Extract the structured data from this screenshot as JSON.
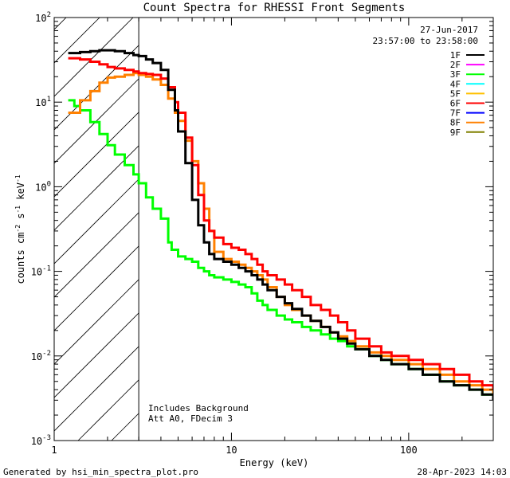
{
  "chart_data": {
    "type": "line",
    "title": "Count Spectra for RHESSI Front Segments",
    "xlabel": "Energy (keV)",
    "ylabel_base": "counts cm",
    "ylabel_exp1": "-2",
    "ylabel_mid1": " s",
    "ylabel_exp2": "-1",
    "ylabel_mid2": " keV",
    "ylabel_exp3": "-1",
    "xscale": "log",
    "yscale": "log",
    "xlim": [
      1,
      300
    ],
    "ylim": [
      0.001,
      100
    ],
    "x_ticks": [
      {
        "value": 1,
        "label": "1"
      },
      {
        "value": 10,
        "label": "10"
      },
      {
        "value": 100,
        "label": "100"
      }
    ],
    "y_ticks": [
      {
        "value": 100,
        "base": "10",
        "exp": "2"
      },
      {
        "value": 10,
        "base": "10",
        "exp": "1"
      },
      {
        "value": 1,
        "base": "10",
        "exp": "0"
      },
      {
        "value": 0.1,
        "base": "10",
        "exp": "-1"
      },
      {
        "value": 0.01,
        "base": "10",
        "exp": "-2"
      },
      {
        "value": 0.001,
        "base": "10",
        "exp": "-3"
      }
    ],
    "date": "27-Jun-2017",
    "time_range": "23:57:00 to 23:58:00",
    "shaded_region_max_keV": 3,
    "annotations": [
      "Includes Background",
      "Att A0, FDecim 3"
    ],
    "legend": [
      {
        "name": "1F",
        "color": "#000000"
      },
      {
        "name": "2F",
        "color": "#ff00ff"
      },
      {
        "name": "3F",
        "color": "#00ff00"
      },
      {
        "name": "4F",
        "color": "#00ffff"
      },
      {
        "name": "5F",
        "color": "#ffc000"
      },
      {
        "name": "6F",
        "color": "#ff0000"
      },
      {
        "name": "7F",
        "color": "#0000ff"
      },
      {
        "name": "8F",
        "color": "#ff8000"
      },
      {
        "name": "9F",
        "color": "#808000"
      }
    ],
    "series": [
      {
        "name": "3F",
        "color": "#00ff00",
        "x": [
          1.2,
          1.3,
          1.4,
          1.6,
          1.8,
          2.0,
          2.2,
          2.5,
          2.8,
          3.0,
          3.3,
          3.6,
          4.0,
          4.4,
          4.6,
          5.0,
          5.5,
          6.0,
          6.5,
          7.0,
          7.5,
          8.0,
          9.0,
          10.0,
          11.0,
          12.0,
          13.0,
          14.0,
          15.0,
          16.0,
          18.0,
          20.0,
          22.0,
          25.0,
          28.0,
          32.0,
          36.0,
          40.0,
          45.0,
          50.0,
          60.0,
          70.0,
          80.0,
          100.0,
          120.0,
          150.0,
          180.0,
          220.0,
          260.0,
          300.0
        ],
        "y": [
          10.5,
          9.0,
          8.0,
          5.8,
          4.2,
          3.1,
          2.4,
          1.8,
          1.4,
          1.1,
          0.75,
          0.55,
          0.42,
          0.22,
          0.18,
          0.15,
          0.14,
          0.13,
          0.11,
          0.1,
          0.09,
          0.085,
          0.08,
          0.075,
          0.07,
          0.065,
          0.055,
          0.045,
          0.04,
          0.035,
          0.03,
          0.027,
          0.025,
          0.022,
          0.02,
          0.018,
          0.016,
          0.015,
          0.013,
          0.012,
          0.01,
          0.009,
          0.008,
          0.007,
          0.006,
          0.005,
          0.0045,
          0.004,
          0.0035,
          0.003
        ]
      },
      {
        "name": "8F",
        "color": "#ff8000",
        "x": [
          1.2,
          1.4,
          1.6,
          1.8,
          2.0,
          2.2,
          2.5,
          2.8,
          3.0,
          3.3,
          3.6,
          4.0,
          4.4,
          4.8,
          5.0,
          5.5,
          6.0,
          6.5,
          7.0,
          7.5,
          8.0,
          9.0,
          10.0,
          11.0,
          12.0,
          13.0,
          14.0,
          15.0,
          16.0,
          18.0,
          20.0,
          22.0,
          25.0,
          28.0,
          32.0,
          36.0,
          40.0,
          45.0,
          50.0,
          60.0,
          70.0,
          80.0,
          100.0,
          120.0,
          150.0,
          180.0,
          220.0,
          260.0,
          300.0
        ],
        "y": [
          7.5,
          10.5,
          13.5,
          17.0,
          19.5,
          20.0,
          21.0,
          22.0,
          21.0,
          20.0,
          18.5,
          16.0,
          11.0,
          7.5,
          6.0,
          3.5,
          2.0,
          1.1,
          0.55,
          0.3,
          0.17,
          0.14,
          0.13,
          0.12,
          0.11,
          0.1,
          0.09,
          0.08,
          0.065,
          0.05,
          0.04,
          0.035,
          0.03,
          0.026,
          0.022,
          0.019,
          0.017,
          0.015,
          0.013,
          0.011,
          0.01,
          0.009,
          0.008,
          0.007,
          0.006,
          0.005,
          0.0045,
          0.004,
          0.0035
        ]
      },
      {
        "name": "6F",
        "color": "#ff0000",
        "x": [
          1.2,
          1.4,
          1.6,
          1.8,
          2.0,
          2.2,
          2.5,
          2.8,
          3.0,
          3.3,
          3.6,
          4.0,
          4.4,
          4.8,
          5.0,
          5.5,
          6.0,
          6.5,
          7.0,
          7.5,
          8.0,
          9.0,
          10.0,
          11.0,
          12.0,
          13.0,
          14.0,
          15.0,
          16.0,
          18.0,
          20.0,
          22.0,
          25.0,
          28.0,
          32.0,
          36.0,
          40.0,
          45.0,
          50.0,
          60.0,
          70.0,
          80.0,
          100.0,
          120.0,
          150.0,
          180.0,
          220.0,
          260.0,
          300.0
        ],
        "y": [
          33.0,
          32.0,
          30.0,
          28.0,
          26.0,
          25.0,
          24.0,
          23.0,
          22.0,
          21.5,
          21.0,
          19.0,
          15.0,
          10.0,
          7.5,
          3.8,
          1.8,
          0.8,
          0.4,
          0.3,
          0.25,
          0.21,
          0.19,
          0.18,
          0.16,
          0.14,
          0.12,
          0.1,
          0.09,
          0.08,
          0.07,
          0.06,
          0.05,
          0.04,
          0.035,
          0.03,
          0.025,
          0.02,
          0.016,
          0.013,
          0.011,
          0.01,
          0.009,
          0.008,
          0.007,
          0.006,
          0.005,
          0.0045,
          0.004
        ]
      },
      {
        "name": "1F",
        "color": "#000000",
        "x": [
          1.2,
          1.4,
          1.6,
          1.8,
          2.0,
          2.2,
          2.5,
          2.8,
          3.0,
          3.3,
          3.6,
          4.0,
          4.4,
          4.8,
          5.0,
          5.5,
          6.0,
          6.5,
          7.0,
          7.5,
          8.0,
          9.0,
          10.0,
          11.0,
          12.0,
          13.0,
          14.0,
          15.0,
          16.0,
          18.0,
          20.0,
          22.0,
          25.0,
          28.0,
          32.0,
          36.0,
          40.0,
          45.0,
          50.0,
          60.0,
          70.0,
          80.0,
          100.0,
          120.0,
          150.0,
          180.0,
          220.0,
          260.0,
          300.0
        ],
        "y": [
          38.0,
          39.0,
          40.0,
          41.0,
          41.0,
          40.0,
          38.0,
          36.0,
          35.0,
          32.0,
          29.0,
          24.0,
          14.0,
          8.0,
          4.5,
          1.9,
          0.7,
          0.35,
          0.22,
          0.16,
          0.14,
          0.13,
          0.12,
          0.11,
          0.1,
          0.09,
          0.08,
          0.07,
          0.06,
          0.05,
          0.042,
          0.036,
          0.03,
          0.026,
          0.022,
          0.019,
          0.016,
          0.014,
          0.012,
          0.01,
          0.009,
          0.008,
          0.007,
          0.006,
          0.005,
          0.0045,
          0.004,
          0.0035,
          0.003
        ]
      }
    ]
  },
  "footer": {
    "left": "Generated by hsi_min_spectra_plot.pro",
    "right": "28-Apr-2023 14:03"
  }
}
